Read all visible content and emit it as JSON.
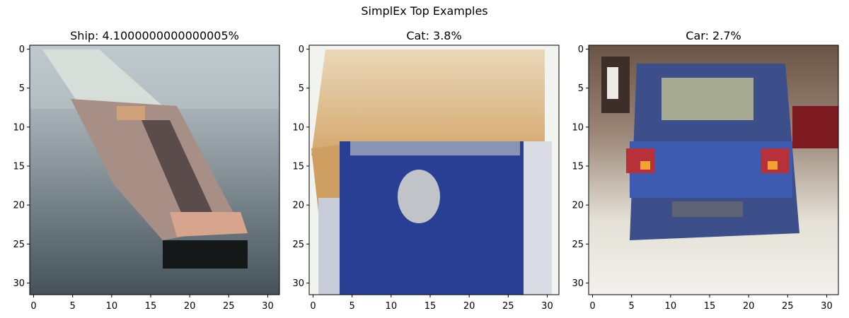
{
  "figure": {
    "suptitle": "SimplEx Top Examples"
  },
  "chart_data": [
    {
      "type": "image",
      "title": "Ship: 4.1000000000000005%",
      "label": "Ship",
      "weight_percent": 4.1000000000000005,
      "xlim": [
        -0.5,
        31.5
      ],
      "ylim": [
        31.5,
        -0.5
      ],
      "xticks": [
        0,
        5,
        10,
        15,
        20,
        25,
        30
      ],
      "yticks": [
        0,
        5,
        10,
        15,
        20,
        25,
        30
      ],
      "image_size": [
        32,
        32
      ]
    },
    {
      "type": "image",
      "title": "Cat: 3.8%",
      "label": "Cat",
      "weight_percent": 3.8,
      "xlim": [
        -0.5,
        31.5
      ],
      "ylim": [
        31.5,
        -0.5
      ],
      "xticks": [
        0,
        5,
        10,
        15,
        20,
        25,
        30
      ],
      "yticks": [
        0,
        5,
        10,
        15,
        20,
        25,
        30
      ],
      "image_size": [
        32,
        32
      ]
    },
    {
      "type": "image",
      "title": "Car: 2.7%",
      "label": "Car",
      "weight_percent": 2.7,
      "xlim": [
        -0.5,
        31.5
      ],
      "ylim": [
        31.5,
        -0.5
      ],
      "xticks": [
        0,
        5,
        10,
        15,
        20,
        25,
        30
      ],
      "yticks": [
        0,
        5,
        10,
        15,
        20,
        25,
        30
      ],
      "image_size": [
        32,
        32
      ]
    }
  ]
}
